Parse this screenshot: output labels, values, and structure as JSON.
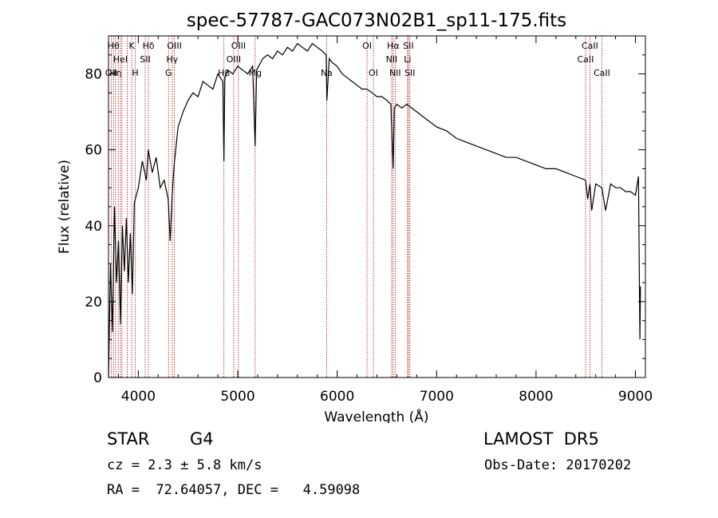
{
  "chart_data": {
    "type": "line",
    "title": "spec-57787-GAC073N02B1_sp11-175.fits",
    "xlabel": "Wavelength (Å)",
    "ylabel": "Flux (relative)",
    "xlim": [
      3700,
      9100
    ],
    "ylim": [
      0,
      90
    ],
    "xticks": [
      4000,
      5000,
      6000,
      7000,
      8000,
      9000
    ],
    "yticks": [
      0,
      20,
      40,
      60,
      80
    ],
    "grid": false,
    "series": [
      {
        "name": "",
        "color": "#000000",
        "x": [
          3700,
          3720,
          3740,
          3760,
          3780,
          3800,
          3820,
          3840,
          3860,
          3880,
          3900,
          3920,
          3940,
          3960,
          3980,
          4000,
          4040,
          4080,
          4100,
          4140,
          4180,
          4220,
          4260,
          4300,
          4320,
          4340,
          4360,
          4400,
          4450,
          4500,
          4550,
          4600,
          4650,
          4700,
          4750,
          4800,
          4850,
          4861,
          4870,
          4900,
          4950,
          5000,
          5050,
          5100,
          5150,
          5175,
          5190,
          5250,
          5300,
          5350,
          5400,
          5450,
          5500,
          5550,
          5600,
          5650,
          5700,
          5750,
          5800,
          5850,
          5890,
          5896,
          5920,
          5950,
          6000,
          6050,
          6100,
          6150,
          6200,
          6250,
          6300,
          6350,
          6400,
          6450,
          6500,
          6540,
          6563,
          6575,
          6600,
          6650,
          6700,
          6750,
          6800,
          6900,
          7000,
          7100,
          7200,
          7300,
          7400,
          7500,
          7600,
          7700,
          7800,
          7900,
          8000,
          8100,
          8200,
          8300,
          8400,
          8498,
          8520,
          8542,
          8560,
          8600,
          8662,
          8700,
          8750,
          8800,
          8850,
          8900,
          8950,
          9000,
          9030,
          9045,
          9050
        ],
        "y": [
          0,
          30,
          12,
          45,
          25,
          36,
          14,
          40,
          28,
          42,
          25,
          38,
          22,
          46,
          48,
          50,
          57,
          52,
          60,
          54,
          58,
          50,
          52,
          47,
          36,
          48,
          56,
          66,
          70,
          73,
          75,
          74,
          78,
          77,
          76,
          80,
          78,
          57,
          79,
          81,
          80,
          82,
          81,
          80,
          82,
          61,
          81,
          84,
          85,
          84,
          86,
          85,
          87,
          86,
          88,
          87,
          86,
          88,
          87,
          86,
          85,
          73,
          84,
          83,
          82,
          80,
          79,
          78,
          77,
          76,
          76,
          75,
          74,
          74,
          73,
          72,
          55,
          71,
          72,
          71,
          72,
          71,
          70,
          68,
          66,
          65,
          63,
          62,
          61,
          60,
          59,
          58,
          58,
          57,
          56,
          55,
          55,
          54,
          53,
          52,
          47,
          51,
          44,
          51,
          50,
          44,
          51,
          50,
          50,
          49,
          49,
          48,
          53,
          10,
          24
        ]
      }
    ],
    "line_markers": [
      {
        "wavelength": 3727,
        "label": "OII",
        "row": 2
      },
      {
        "wavelength": 3750,
        "label": "Hθ",
        "row": 0
      },
      {
        "wavelength": 3771,
        "label": "Hη",
        "row": 2
      },
      {
        "wavelength": 3798,
        "label": "",
        "row": 2
      },
      {
        "wavelength": 3820,
        "label": "HeI",
        "row": 1
      },
      {
        "wavelength": 3835,
        "label": "",
        "row": 2
      },
      {
        "wavelength": 3889,
        "label": "",
        "row": 2
      },
      {
        "wavelength": 3934,
        "label": "K",
        "row": 0
      },
      {
        "wavelength": 3969,
        "label": "H",
        "row": 2
      },
      {
        "wavelength": 4069,
        "label": "SII",
        "row": 1
      },
      {
        "wavelength": 4102,
        "label": "Hδ",
        "row": 0
      },
      {
        "wavelength": 4304,
        "label": "G",
        "row": 2
      },
      {
        "wavelength": 4341,
        "label": "Hγ",
        "row": 1
      },
      {
        "wavelength": 4363,
        "label": "OIII",
        "row": 0
      },
      {
        "wavelength": 4861,
        "label": "Hβ",
        "row": 2
      },
      {
        "wavelength": 4959,
        "label": "OIII",
        "row": 1
      },
      {
        "wavelength": 5007,
        "label": "OIII",
        "row": 0
      },
      {
        "wavelength": 5175,
        "label": "Mg",
        "row": 2
      },
      {
        "wavelength": 5894,
        "label": "Na",
        "row": 2
      },
      {
        "wavelength": 6300,
        "label": "OI",
        "row": 0
      },
      {
        "wavelength": 6364,
        "label": "OI",
        "row": 2
      },
      {
        "wavelength": 6548,
        "label": "NII",
        "row": 1
      },
      {
        "wavelength": 6563,
        "label": "Hα",
        "row": 0
      },
      {
        "wavelength": 6583,
        "label": "NII",
        "row": 2
      },
      {
        "wavelength": 6708,
        "label": "Li",
        "row": 1
      },
      {
        "wavelength": 6716,
        "label": "SII",
        "row": 0
      },
      {
        "wavelength": 6731,
        "label": "SII",
        "row": 2
      },
      {
        "wavelength": 8498,
        "label": "CaII",
        "row": 1
      },
      {
        "wavelength": 8542,
        "label": "CaII",
        "row": 0
      },
      {
        "wavelength": 8662,
        "label": "CaII",
        "row": 2
      }
    ]
  },
  "info": {
    "object_type": "STAR",
    "subclass": "G4",
    "survey": "LAMOST  DR5",
    "redshift": "cz = 2.3 ± 5.8 km/s",
    "obs_date": "Obs-Date: 20170202",
    "coords": "RA =  72.64057, DEC =   4.59098"
  },
  "colors": {
    "spectrum": "#000000",
    "marker_line": "#a31010",
    "text": "#000000",
    "background": "#ffffff"
  }
}
